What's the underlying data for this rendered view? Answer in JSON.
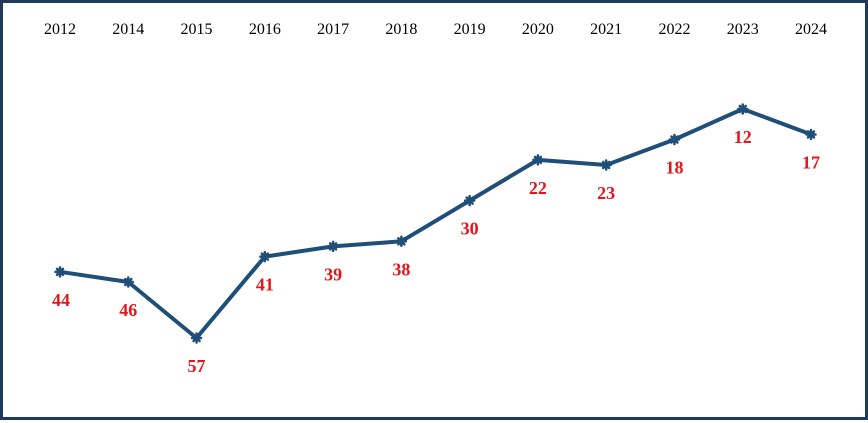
{
  "chart_data": {
    "type": "line",
    "title": "",
    "xlabel": "",
    "ylabel": "",
    "x_axis_position": "top",
    "y_axis": "hidden (inverted rank scale, lower value plotted higher)",
    "ylim": [
      10,
      60
    ],
    "grid": false,
    "legend": "none",
    "categories": [
      "2012",
      "2014",
      "2015",
      "2016",
      "2017",
      "2018",
      "2019",
      "2020",
      "2021",
      "2022",
      "2023",
      "2024"
    ],
    "series": [
      {
        "name": "",
        "values": [
          44,
          46,
          57,
          41,
          39,
          38,
          30,
          22,
          23,
          18,
          12,
          17
        ]
      }
    ],
    "colors": {
      "line": "#1f4e79",
      "data_labels": "#e8141c",
      "frame_border": "#1f3a5a"
    }
  }
}
